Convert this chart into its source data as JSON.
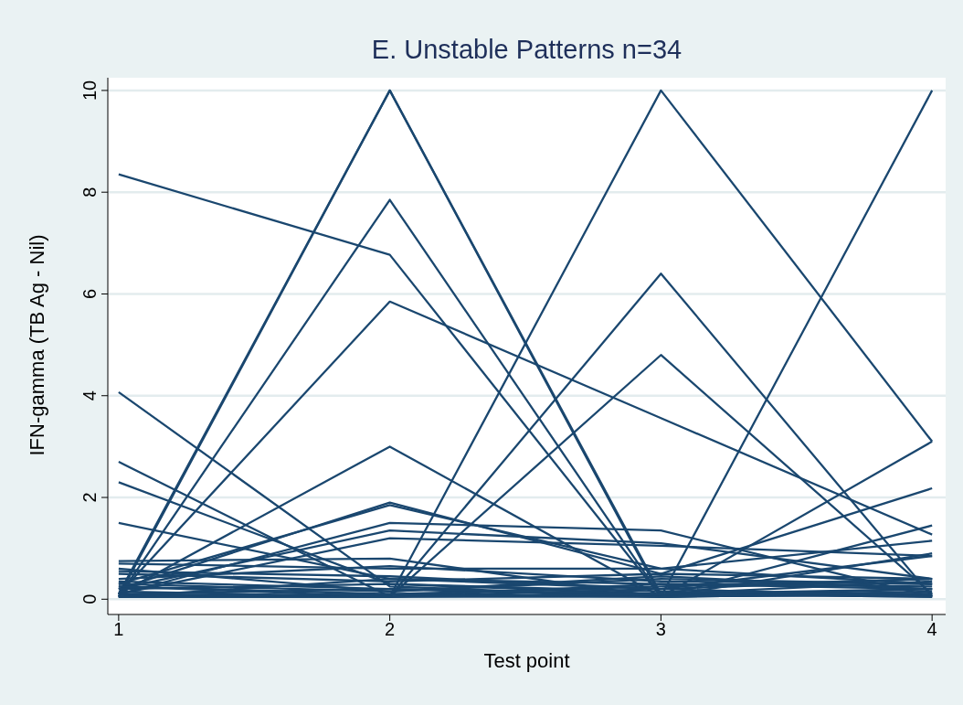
{
  "chart_data": {
    "type": "line",
    "title": "E. Unstable Patterns n=34",
    "xlabel": "Test point",
    "ylabel": "IFN-gamma (TB Ag - Nil)",
    "x": [
      1,
      2,
      3,
      4
    ],
    "xlim": [
      0.96,
      4.05
    ],
    "xticks": [
      1,
      2,
      3,
      4
    ],
    "ylim": [
      -0.3,
      10.25
    ],
    "yticks": [
      0,
      2,
      4,
      6,
      8,
      10
    ],
    "grid": "y",
    "series": [
      {
        "color": "#1a476f",
        "values": [
          8.35,
          6.77,
          0.05,
          0.1
        ]
      },
      {
        "color": "#1a476f",
        "values": [
          0.05,
          10,
          0.05,
          3.1
        ]
      },
      {
        "color": "#1a476f",
        "values": [
          0.1,
          10,
          0.1,
          0.2
        ]
      },
      {
        "color": "#1a476f",
        "values": [
          0.05,
          7.85,
          0.05,
          0.1
        ]
      },
      {
        "color": "#1a476f",
        "values": [
          0.1,
          5.85,
          3.56,
          1.27
        ]
      },
      {
        "color": "#1a476f",
        "values": [
          0.05,
          0.05,
          10,
          3.1
        ]
      },
      {
        "color": "#1a476f",
        "values": [
          0.05,
          0.05,
          6.4,
          0.05
        ]
      },
      {
        "color": "#1a476f",
        "values": [
          0.05,
          0.05,
          4.8,
          0.1
        ]
      },
      {
        "color": "#1a476f",
        "values": [
          0.1,
          0.05,
          0.05,
          10
        ]
      },
      {
        "color": "#1a476f",
        "values": [
          4.07,
          0.25,
          0.05,
          0.1
        ]
      },
      {
        "color": "#1a476f",
        "values": [
          2.7,
          0.05,
          0.2,
          0.4
        ]
      },
      {
        "color": "#1a476f",
        "values": [
          2.3,
          0.3,
          0.1,
          0.05
        ]
      },
      {
        "color": "#1a476f",
        "values": [
          1.5,
          0.4,
          0.3,
          0.2
        ]
      },
      {
        "color": "#1a476f",
        "values": [
          0.1,
          3.0,
          0.05,
          0.2
        ]
      },
      {
        "color": "#1a476f",
        "values": [
          0.2,
          1.9,
          0.5,
          2.18
        ]
      },
      {
        "color": "#1a476f",
        "values": [
          0.3,
          1.85,
          0.6,
          0.3
        ]
      },
      {
        "color": "#1a476f",
        "values": [
          0.1,
          1.5,
          1.35,
          0.05
        ]
      },
      {
        "color": "#1a476f",
        "values": [
          0.2,
          1.35,
          1.1,
          0.4
        ]
      },
      {
        "color": "#1a476f",
        "values": [
          0.1,
          1.2,
          1.05,
          0.85
        ]
      },
      {
        "color": "#1a476f",
        "values": [
          0.75,
          0.8,
          0.05,
          1.45
        ]
      },
      {
        "color": "#1a476f",
        "values": [
          0.7,
          0.6,
          0.6,
          1.15
        ]
      },
      {
        "color": "#1a476f",
        "values": [
          0.55,
          0.45,
          0.2,
          0.85
        ]
      },
      {
        "color": "#1a476f",
        "values": [
          0.5,
          0.35,
          0.5,
          0.4
        ]
      },
      {
        "color": "#1a476f",
        "values": [
          0.35,
          0.2,
          0.05,
          0.9
        ]
      },
      {
        "color": "#1a476f",
        "values": [
          0.3,
          0.15,
          0.4,
          0.3
        ]
      },
      {
        "color": "#1a476f",
        "values": [
          0.25,
          0.1,
          0.25,
          0.4
        ]
      },
      {
        "color": "#1a476f",
        "values": [
          0.2,
          0.3,
          0.15,
          0.1
        ]
      },
      {
        "color": "#1a476f",
        "values": [
          0.15,
          0.05,
          0.3,
          0.25
        ]
      },
      {
        "color": "#1a476f",
        "values": [
          0.1,
          0.2,
          0.1,
          0.05
        ]
      },
      {
        "color": "#1a476f",
        "values": [
          0.05,
          0.1,
          0.05,
          0.15
        ]
      },
      {
        "color": "#1a476f",
        "values": [
          0.4,
          0.65,
          0.35,
          0.3
        ]
      },
      {
        "color": "#1a476f",
        "values": [
          0.6,
          0.15,
          0.45,
          0.2
        ]
      },
      {
        "color": "#1a476f",
        "values": [
          0.05,
          0.4,
          0.2,
          0.05
        ]
      },
      {
        "color": "#1a476f",
        "values": [
          0.25,
          0.05,
          0.1,
          0.35
        ]
      }
    ]
  }
}
